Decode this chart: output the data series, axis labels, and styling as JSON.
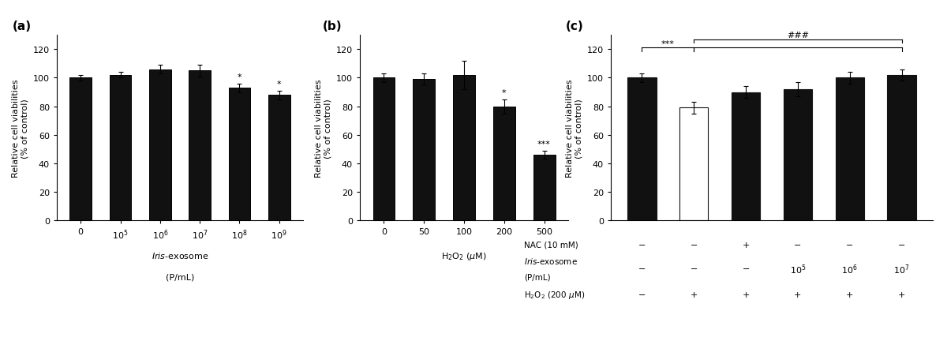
{
  "panel_a": {
    "values": [
      100,
      102,
      106,
      105,
      93,
      88
    ],
    "errors": [
      2,
      2,
      3,
      4,
      3,
      3
    ],
    "xtick_labels": [
      "0",
      "10^5",
      "10^6",
      "10^7",
      "10^8",
      "10^9"
    ],
    "ylabel": "Relative cell viabilities\n(% of control)",
    "ylim": [
      0,
      130
    ],
    "yticks": [
      0,
      20,
      40,
      60,
      80,
      100,
      120
    ],
    "bar_color": "#111111",
    "sig_labels": [
      "",
      "",
      "",
      "",
      "*",
      "*"
    ],
    "panel_label": "(a)",
    "xlabel_italic": "Iris",
    "xlabel_rest": "-exosome",
    "xlabel_line2": "(P/mL)"
  },
  "panel_b": {
    "values": [
      100,
      99,
      102,
      80,
      46
    ],
    "errors": [
      3,
      4,
      10,
      5,
      3
    ],
    "xtick_labels": [
      "0",
      "50",
      "100",
      "200",
      "500"
    ],
    "ylabel": "Relative cell viabilities\n(% of control)",
    "ylim": [
      0,
      130
    ],
    "yticks": [
      0,
      20,
      40,
      60,
      80,
      100,
      120
    ],
    "bar_color": "#111111",
    "sig_labels": [
      "",
      "",
      "",
      "*",
      "***"
    ],
    "panel_label": "(b)"
  },
  "panel_c": {
    "values": [
      100,
      79,
      90,
      92,
      100,
      102
    ],
    "errors": [
      3,
      4,
      4,
      5,
      4,
      4
    ],
    "bar_colors": [
      "#111111",
      "#ffffff",
      "#111111",
      "#111111",
      "#111111",
      "#111111"
    ],
    "bar_edgecolors": [
      "#111111",
      "#111111",
      "#111111",
      "#111111",
      "#111111",
      "#111111"
    ],
    "ylabel": "Relative cell viabilities\n(% of control)",
    "ylim": [
      0,
      130
    ],
    "yticks": [
      0,
      20,
      40,
      60,
      80,
      100,
      120
    ],
    "panel_label": "(c)",
    "row1_label": "NAC (10 mM)",
    "row1_values": [
      "−",
      "−",
      "+",
      "−",
      "−",
      "−"
    ],
    "row2_label_italic": "Iris",
    "row2_label_rest": "-exosome",
    "row2_label_line2": "(P/mL)",
    "row2_values": [
      "−",
      "−",
      "−",
      "10^5",
      "10^6",
      "10^7"
    ],
    "row3_label": "H₂O₂ (200 μM)",
    "row3_values": [
      "−",
      "+",
      "+",
      "+",
      "+",
      "+"
    ]
  }
}
